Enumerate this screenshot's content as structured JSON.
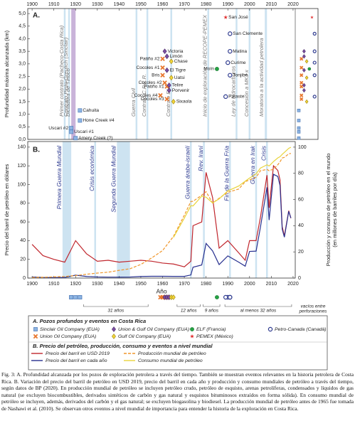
{
  "chart_data": [
    {
      "type": "scatter",
      "panel": "A.",
      "ylabel": "Profundidad máxima alcanzada (km)",
      "legend_title": "A. Pozos profundos y eventos en Costa Rica",
      "xlim": [
        1898,
        2021
      ],
      "xticks": [
        1900,
        1910,
        1920,
        1930,
        1940,
        1950,
        1960,
        1970,
        1980,
        1990,
        2000,
        2010,
        2020
      ],
      "ylim": [
        0,
        5.2
      ],
      "yticks": [
        {
          "value": 0,
          "label": "0,0"
        },
        {
          "value": 0.5,
          "label": "0,5"
        },
        {
          "value": 1,
          "label": "1,0"
        },
        {
          "value": 1.5,
          "label": "1,5"
        },
        {
          "value": 2,
          "label": "2,0"
        },
        {
          "value": 2.5,
          "label": "2,5"
        },
        {
          "value": 3,
          "label": "3,0"
        },
        {
          "value": 3.5,
          "label": "3,5"
        },
        {
          "value": 4,
          "label": "4,0"
        },
        {
          "value": 4.5,
          "label": "4,5"
        },
        {
          "value": 5,
          "label": "5,0"
        }
      ],
      "event_text_color": "#7a7a7a",
      "events": [
        {
          "label": "Primer contrato (Pacheco-Costa Rica)",
          "from": 1915,
          "to": 1915,
          "color": "#cde3f1"
        },
        {
          "label": "Contrato Pinto-Greulich (Sinclair)",
          "from": 1917,
          "to": 1917,
          "color": "#cde3f1"
        },
        {
          "label": "Dictadura de Tinoco",
          "from": 1918,
          "to": 1920,
          "color": "#c9b3d9"
        },
        {
          "label": "Guerra Civil",
          "from": 1948,
          "to": 1948,
          "color": "#cde3f1"
        },
        {
          "label": "Contrato C.P.C.R.",
          "from": 1953,
          "to": 1953,
          "color": "#cde3f1"
        },
        {
          "label": "Contrato ELF",
          "from": 1964,
          "to": 1964,
          "color": "#cde3f1"
        },
        {
          "label": "Inicio de exploración de RECOPE-PEMEX",
          "from": 1981,
          "to": 1981,
          "color": "#cde3f1"
        },
        {
          "label": "Ley de hidrocarburos",
          "from": 1994,
          "to": 1994,
          "color": "#cde3f1"
        },
        {
          "label": "Concesión a MKJ-x",
          "from": 2000,
          "to": 2000,
          "color": "#cde3f1"
        },
        {
          "label": "Moratoria a la actividad petrolera",
          "from": 2007,
          "to": 2008,
          "color": "#cde3f1"
        }
      ],
      "series": [
        {
          "name": "Sinclair Oil Company (EUA)",
          "marker": "square",
          "color": "#8db4e2",
          "edge": "#4a76b5",
          "labels": [
            "Uscari #2",
            "Uscari #1",
            "Amery Creek (?)",
            "Hone Creek #4",
            "Cahuita"
          ],
          "x": [
            1918,
            1918,
            1920,
            1922,
            1922
          ],
          "values": [
            0.45,
            0.3,
            0.05,
            0.75,
            1.15
          ]
        },
        {
          "name": "Union Oil Company (EUA)",
          "marker": "x",
          "color": "#e8772e",
          "edge": "#e8772e",
          "labels": [
            "Patiño #2",
            "Cocoles #1",
            "Bris",
            "Cocoles #2",
            "Patiño #1",
            "Cocoles #4",
            "Cocoles #3"
          ],
          "x": [
            1960,
            1960,
            1960,
            1961,
            1962,
            1959,
            1962
          ],
          "values": [
            3.2,
            2.85,
            2.55,
            2.25,
            2.1,
            1.75,
            1.6
          ]
        },
        {
          "name": "Union & Gulf Oil Company (EUA)",
          "marker": "diamond",
          "color": "#7b4fa0",
          "edge": "#4b2a6a",
          "labels": [
            "Victoria",
            "Limón",
            "El Tigre",
            "Telire",
            "Porvenir"
          ],
          "x": [
            1961,
            1962,
            1962,
            1963,
            1963
          ],
          "values": [
            3.5,
            3.3,
            2.75,
            2.15,
            1.95
          ]
        },
        {
          "name": "Gulf Oil Company (EUA)",
          "marker": "diamond",
          "color": "#f2d43a",
          "edge": "#9a8410",
          "labels": [
            "Chase",
            "Uatsi",
            "Sixaola"
          ],
          "x": [
            1964,
            1964,
            1965
          ],
          "values": [
            3.1,
            2.45,
            1.5
          ]
        },
        {
          "name": "ELF (Francia)",
          "marker": "circle",
          "color": "#25a244",
          "edge": "#1c7a33",
          "labels": [
            "Moín"
          ],
          "x": [
            1985
          ],
          "values": [
            2.8
          ]
        },
        {
          "name": "PEMEX (México)",
          "marker": "star",
          "color": "#e02a2a",
          "edge": "#e02a2a",
          "labels": [
            "San José"
          ],
          "x": [
            1989
          ],
          "values": [
            4.85
          ]
        },
        {
          "name": "Petro-Canada (Canadá)",
          "marker": "ring",
          "color": "#2f3b8f",
          "edge": "#2f3b8f",
          "labels": [
            "San Clemente",
            "Matina",
            "Curime",
            "Tonjibe",
            "Pataste"
          ],
          "x": [
            1991,
            1991,
            1990,
            1991,
            1989
          ],
          "values": [
            4.2,
            3.5,
            3.05,
            2.55,
            1.7
          ]
        }
      ]
    },
    {
      "type": "line",
      "panel": "B.",
      "ylabel": "Precio del barril de petróleo en dólares",
      "y2label": [
        "Producción y consumo de petróleo en el mundo",
        "(en millones de barriles por día)"
      ],
      "xlabel": "Año",
      "legend_title": "B. Precio del petróleo, producción, consumo y eventos a nivel mundial",
      "xlim": [
        1898,
        2021
      ],
      "xticks": [
        1900,
        1910,
        1920,
        1930,
        1940,
        1950,
        1960,
        1970,
        1980,
        1990,
        2000,
        2010,
        2020
      ],
      "ylim": [
        0,
        146
      ],
      "yticks": [
        0,
        20,
        40,
        60,
        80,
        100,
        120,
        140
      ],
      "y2lim": [
        0,
        104.3
      ],
      "y2ticks": [
        0,
        20,
        40,
        60,
        80,
        100
      ],
      "event_text_color": "#2b3990",
      "events": [
        {
          "label": "Primera Guerra Mundial",
          "from": 1914,
          "to": 1918,
          "color": "#cde3f1"
        },
        {
          "label": "Crisis económica",
          "from": 1929,
          "to": 1929,
          "color": "#cde3f1"
        },
        {
          "label": "Segunda Guerra Mundial",
          "from": 1939,
          "to": 1945,
          "color": "#cde3f1"
        },
        {
          "label": "Guerra árabe-israelí",
          "from": 1973,
          "to": 1973,
          "color": "#cde3f1"
        },
        {
          "label": "Rev. Iraní",
          "from": 1979,
          "to": 1979,
          "color": "#cde3f1"
        },
        {
          "label": "Fin de la Guerra Fría",
          "from": 1991,
          "to": 1991,
          "color": "#cde3f1"
        },
        {
          "label": "Guerra en Irak",
          "from": 2003,
          "to": 2003,
          "color": "#cde3f1"
        },
        {
          "label": "Crisis",
          "from": 2008,
          "to": 2008,
          "color": "#cde3f1"
        }
      ],
      "x": [
        1900,
        1905,
        1910,
        1915,
        1920,
        1925,
        1930,
        1935,
        1940,
        1945,
        1950,
        1955,
        1960,
        1965,
        1970,
        1973,
        1974,
        1978,
        1980,
        1983,
        1986,
        1990,
        1995,
        1998,
        2000,
        2003,
        2005,
        2008,
        2009,
        2011,
        2013,
        2014,
        2015,
        2016,
        2018,
        2019
      ],
      "series": [
        {
          "name": "Precio del barril en USD 2019",
          "color": "#c0262d",
          "dash": false,
          "values": [
            36,
            24,
            20,
            17,
            40,
            26,
            18,
            19,
            17,
            18,
            19,
            18,
            16,
            15,
            12,
            18,
            56,
            60,
            113,
            86,
            32,
            40,
            27,
            19,
            40,
            40,
            65,
            110,
            75,
            120,
            115,
            105,
            55,
            45,
            72,
            64
          ]
        },
        {
          "name": "Precio del barril en cada año",
          "color": "#27308f",
          "dash": false,
          "values": [
            1.2,
            0.7,
            0.6,
            0.6,
            3.1,
            1.7,
            1.2,
            1.0,
            1.0,
            1.1,
            1.7,
            1.9,
            1.9,
            1.8,
            1.8,
            3.3,
            11.6,
            14,
            37,
            29,
            14.4,
            23.7,
            17,
            12.7,
            28.5,
            28.8,
            54.5,
            97,
            62,
            111,
            108.6,
            99,
            52.4,
            43.7,
            71.3,
            64.2
          ]
        },
        {
          "name": "Producción mundial de petróleo",
          "color": "#f0962a",
          "dash": true,
          "axis": "y2",
          "values": [
            0.4,
            0.6,
            0.9,
            1.2,
            1.9,
            2.9,
            3.8,
            4.5,
            5.9,
            7.1,
            10.4,
            15.4,
            21,
            31.8,
            48,
            58.5,
            58.6,
            63.3,
            66,
            57.3,
            61,
            65.5,
            68,
            73.6,
            75,
            77,
            82,
            83,
            82,
            83.2,
            86.6,
            88.8,
            91.7,
            92.2,
            94.9,
            95.2
          ]
        },
        {
          "name": "Consumo mundial de petróleo",
          "color": "#e9d43c",
          "dash": false,
          "axis": "y2",
          "values": [
            null,
            null,
            null,
            null,
            null,
            null,
            null,
            null,
            null,
            null,
            null,
            null,
            null,
            31,
            45.8,
            55.3,
            55.1,
            62.6,
            61.8,
            57.4,
            60.5,
            66.6,
            70.3,
            74,
            76.4,
            79.6,
            84,
            86.5,
            85.6,
            89,
            91.8,
            92.7,
            94.5,
            96,
            99.1,
            99.9
          ]
        }
      ]
    }
  ],
  "timeline": {
    "gaps": [
      {
        "label": "31 años",
        "from": 1923,
        "to": 1954
      },
      {
        "label": "12 años",
        "from": 1966,
        "to": 1978
      },
      {
        "label": "9 años",
        "from": 1978,
        "to": 1987
      },
      {
        "label": "al menos 32 años",
        "from": 1988,
        "to": 2020
      }
    ],
    "note": [
      "vacíos entre",
      "perforaciones"
    ]
  },
  "caption": "Fig. 3: A. Profundidad alcanzada por los pozos de exploración petrolera a través del tiempo. También se muestran eventos relevantes en la historia petrolera de Costa Rica. B. Variación del precio del barril de petróleo en USD 2019, precio del barril en cada año y producción y consumo mundiales de petróleo a través del tiempo, según datos de BP (2020). En producción mundial de petróleo se incluyen petróleo crudo, petróleo de esquisto, arenas petrolíferas, condensados y líquidos de gas natural (se excluyen biocombustibles, derivados sintéticos de carbón y gas natural y esquistos bituminosos extraídos en forma sólida). En consumo mundial de petróleo se incluyen, además, derivados del carbón y el gas natural; se excluyen biogasolina y biodiesel. La producción mundial de petróleo antes de 1965 fue tomada de Nashawi et al. (2010). Se observan otros eventos a nivel mundial de importancia para entender la historia de la exploración en Costa Rica."
}
